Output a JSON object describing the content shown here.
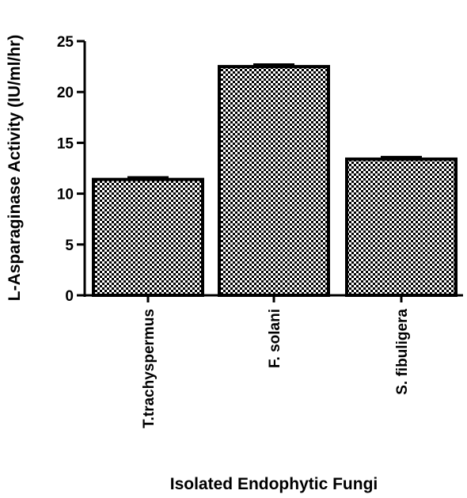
{
  "chart_data": {
    "type": "bar",
    "title": "",
    "xlabel": "Isolated Endophytic Fungi",
    "ylabel": "L-Asparaginase Activity (IU/ml/hr)",
    "categories": [
      "T.trachyspermus",
      "F. solani",
      "S. fibuligera"
    ],
    "values": [
      11.4,
      22.5,
      13.4
    ],
    "errors": [
      0.2,
      0.2,
      0.2
    ],
    "ylim": [
      0,
      25
    ],
    "yticks": [
      "0",
      "5",
      "10",
      "15",
      "20",
      "25"
    ],
    "bar_fill": "checkered",
    "legend": "none",
    "grid": false
  },
  "colors": {
    "bar_dark": "#000000",
    "bar_light": "#ffffff",
    "axis": "#000000"
  }
}
